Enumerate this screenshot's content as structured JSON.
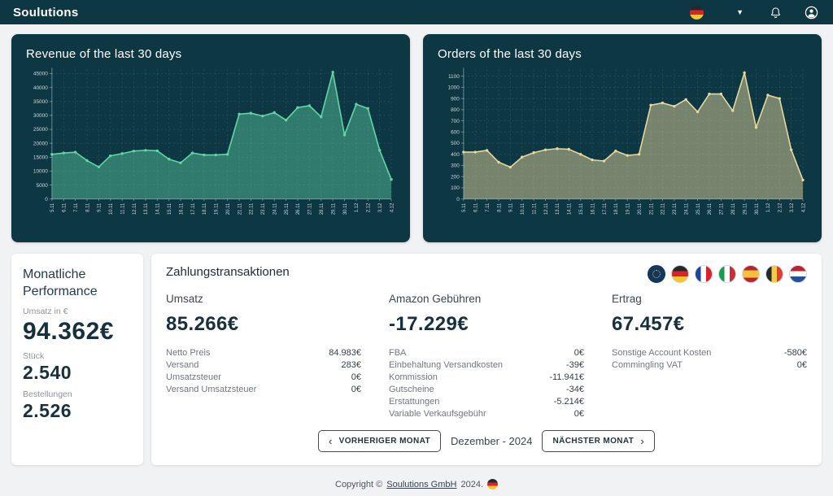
{
  "navbar": {
    "logo": "Soulutions",
    "language": "germany",
    "colors": {
      "navbar_bg": "#0e3744"
    }
  },
  "chart_data": [
    {
      "type": "area",
      "title": "Revenue of the last 30 days",
      "x": [
        "5.11",
        "6.11",
        "7.11",
        "8.11",
        "9.11",
        "10.11",
        "11.11",
        "12.11",
        "13.11",
        "14.11",
        "15.11",
        "16.11",
        "17.11",
        "18.11",
        "19.11",
        "20.11",
        "21.11",
        "22.11",
        "23.11",
        "24.11",
        "25.11",
        "26.11",
        "27.11",
        "28.11",
        "29.11",
        "30.11",
        "1.12",
        "2.12",
        "3.12",
        "4.12"
      ],
      "values": [
        16000,
        16500,
        16800,
        13800,
        11500,
        15500,
        16300,
        17200,
        17500,
        17300,
        14300,
        13000,
        16500,
        15800,
        15800,
        16000,
        30500,
        30800,
        29800,
        31000,
        28300,
        32800,
        33500,
        29500,
        45500,
        23000,
        34000,
        32500,
        17500,
        7000
      ],
      "ylim": [
        0,
        45000
      ],
      "ytick_step": 5000,
      "plot_max": 46500,
      "grid": true,
      "line_color": "#5fd8a6",
      "fill_color": "rgba(95,216,166,0.42)"
    },
    {
      "type": "area",
      "title": "Orders of the last 30 days",
      "x": [
        "5.11",
        "6.11",
        "7.11",
        "8.11",
        "9.11",
        "10.11",
        "11.11",
        "12.11",
        "13.11",
        "14.11",
        "15.11",
        "16.11",
        "17.11",
        "18.11",
        "19.11",
        "20.11",
        "21.11",
        "22.11",
        "23.11",
        "24.11",
        "25.11",
        "26.11",
        "27.11",
        "28.11",
        "29.11",
        "30.11",
        "1.12",
        "2.12",
        "3.12",
        "4.12"
      ],
      "values": [
        420,
        420,
        435,
        330,
        285,
        375,
        415,
        440,
        450,
        445,
        400,
        350,
        340,
        430,
        390,
        400,
        840,
        860,
        830,
        890,
        780,
        940,
        940,
        790,
        1130,
        640,
        930,
        900,
        440,
        170
      ],
      "ylim": [
        0,
        1100
      ],
      "ytick_step": 100,
      "plot_max": 1160,
      "grid": true,
      "line_color": "#e7d89b",
      "fill_color": "rgba(231,216,155,0.48)"
    }
  ],
  "monthly_performance": {
    "title": "Monatliche Performance",
    "metrics": [
      {
        "label": "Umsatz in €",
        "value": "94.362€"
      },
      {
        "label": "Stück",
        "value": "2.540"
      },
      {
        "label": "Bestellungen",
        "value": "2.526"
      }
    ]
  },
  "transactions": {
    "title": "Zahlungstransaktionen",
    "flags": [
      "eu",
      "germany",
      "france",
      "italy",
      "spain",
      "belgium",
      "netherlands"
    ],
    "active_flag": "eu",
    "columns": [
      {
        "label": "Umsatz",
        "value": "85.266€",
        "rows": [
          {
            "label": "Netto Preis",
            "value": "84.983€"
          },
          {
            "label": "Versand",
            "value": "283€"
          },
          {
            "label": "Umsatzsteuer",
            "value": "0€"
          },
          {
            "label": "Versand Umsatzsteuer",
            "value": "0€"
          }
        ]
      },
      {
        "label": "Amazon Gebühren",
        "value": "-17.229€",
        "rows": [
          {
            "label": "FBA",
            "value": "0€"
          },
          {
            "label": "Einbehaltung Versandkosten",
            "value": "-39€"
          },
          {
            "label": "Kommission",
            "value": "-11.941€"
          },
          {
            "label": "Gutscheine",
            "value": "-34€"
          },
          {
            "label": "Erstattungen",
            "value": "-5.214€"
          },
          {
            "label": "Variable Verkaufsgebühr",
            "value": "0€"
          }
        ]
      },
      {
        "label": "Ertrag",
        "value": "67.457€",
        "rows": [
          {
            "label": "Sonstige Account Kosten",
            "value": "-580€"
          },
          {
            "label": "Commingling VAT",
            "value": "0€"
          }
        ]
      }
    ],
    "month_nav": {
      "prev": "VORHERIGER MONAT",
      "current": "Dezember - 2024",
      "next": "NÄCHSTER MONAT"
    }
  },
  "footer": {
    "text_before": "Copyright ©",
    "link": "Soulutions GmbH",
    "text_after": "2024.",
    "flag": "germany"
  }
}
